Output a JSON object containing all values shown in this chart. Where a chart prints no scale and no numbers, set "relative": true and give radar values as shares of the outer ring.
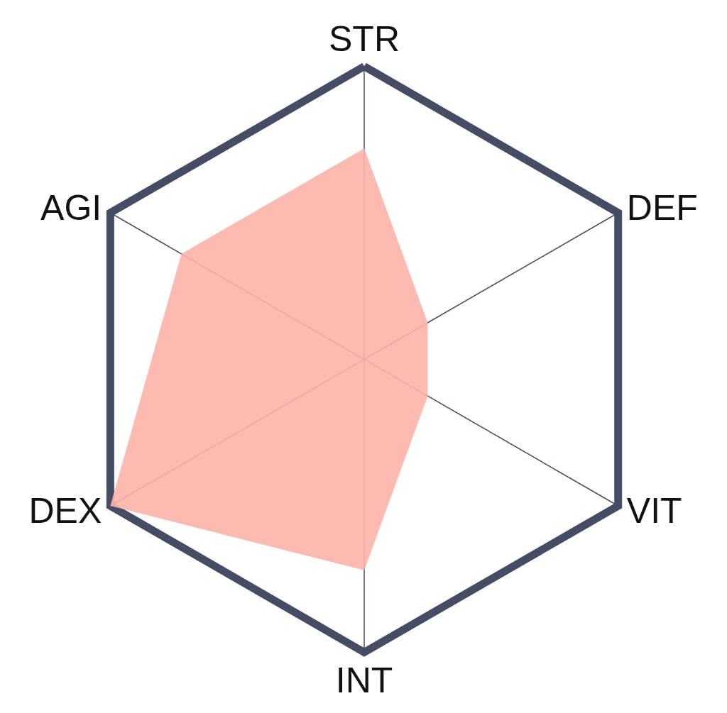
{
  "chart_data": {
    "type": "radar",
    "relative": true,
    "marker": "none",
    "categories": [
      "STR",
      "DEF",
      "VIT",
      "INT",
      "DEX",
      "AGI"
    ],
    "series": [
      {
        "color": "#fdb3a8",
        "values": [
          0.72,
          0.25,
          0.25,
          0.72,
          1,
          0.72
        ]
      }
    ]
  }
}
